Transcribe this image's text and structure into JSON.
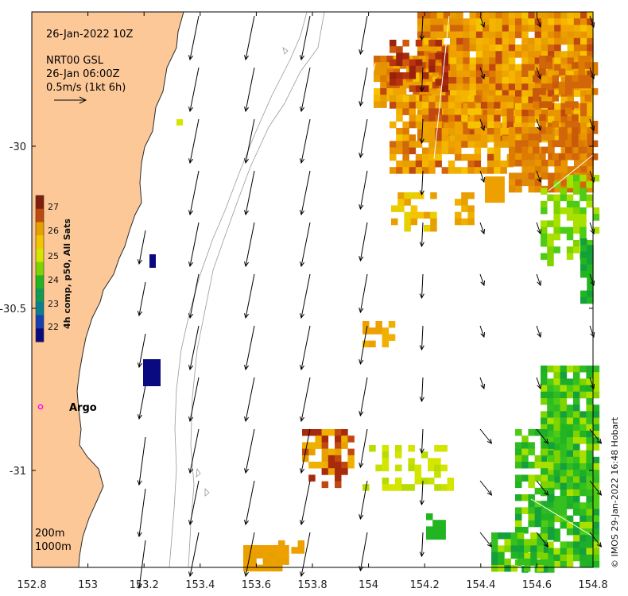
{
  "header": {
    "datetime": "26-Jan-2022 10Z",
    "product": "NRT00 GSL",
    "product_time": "26-Jan 06:00Z",
    "scale_label": "0.5m/s (1kt 6h)"
  },
  "colorbar": {
    "title": "4h comp, p50, All Sats",
    "ticks": [
      "27",
      "26",
      "25",
      "24",
      "23",
      "22"
    ],
    "colors": [
      "#7f1e0a",
      "#c0490f",
      "#e8a000",
      "#f5c400",
      "#d4e600",
      "#7fd400",
      "#22b522",
      "#109a55",
      "#0a7f90",
      "#163fb0",
      "#0a0a80"
    ]
  },
  "axes": {
    "x_ticks": [
      "152.8",
      "153",
      "153.2",
      "153.4",
      "153.6",
      "153.8",
      "154",
      "154.2",
      "154.4",
      "154.6",
      "154.8"
    ],
    "y_ticks": [
      "-30",
      "-30.5",
      "-31"
    ]
  },
  "contours": {
    "label_200": "200m",
    "label_1000": "1000m"
  },
  "argo": {
    "label": "Argo"
  },
  "credit": "© IMOS 29-Jan-2022 16:48 Hobart",
  "colors": {
    "land": "#fdc898",
    "coast": "#2a2a2a",
    "argo": "#ff00ff",
    "isobath": "#999999"
  }
}
